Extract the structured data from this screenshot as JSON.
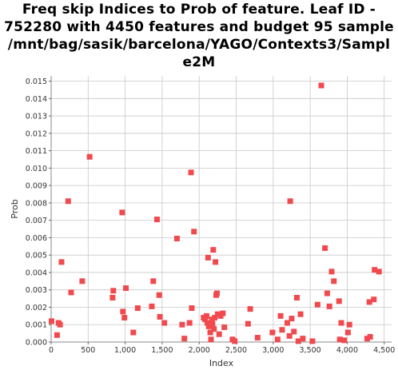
{
  "chart_data": {
    "type": "scatter",
    "title_lines": [
      "Freq skip Indices to Prob of feature. Leaf ID -",
      "752280 with 4450 features and budget 95 sample",
      "/mnt/bag/sasik/barcelona/YAGO/Contexts3/Sampl",
      "e2M"
    ],
    "xlabel": "Index",
    "ylabel": "Prob",
    "xlim": [
      0,
      4600
    ],
    "ylim": [
      0,
      0.0153
    ],
    "x_ticks": [
      0,
      500,
      1000,
      1500,
      2000,
      2500,
      3000,
      3500,
      4000,
      4500
    ],
    "x_tick_labels": [
      "0",
      "500",
      "1,000",
      "1,500",
      "2,000",
      "2,500",
      "3,000",
      "3,500",
      "4,000",
      "4,500"
    ],
    "y_ticks": [
      0.0,
      0.001,
      0.002,
      0.003,
      0.004,
      0.005,
      0.006,
      0.007,
      0.008,
      0.009,
      0.01,
      0.011,
      0.012,
      0.013,
      0.014,
      0.015
    ],
    "y_tick_labels": [
      "0.000",
      "0.001",
      "0.002",
      "0.003",
      "0.004",
      "0.005",
      "0.006",
      "0.007",
      "0.008",
      "0.009",
      "0.010",
      "0.011",
      "0.012",
      "0.013",
      "0.014",
      "0.015"
    ],
    "grid": true,
    "marker_color": "#f04a4f",
    "grid_color": "#c8c8c8",
    "points": [
      [
        5,
        0.0012
      ],
      [
        80,
        0.0004
      ],
      [
        100,
        0.0011
      ],
      [
        120,
        0.001
      ],
      [
        140,
        0.0046
      ],
      [
        230,
        0.0081
      ],
      [
        270,
        0.00285
      ],
      [
        420,
        0.0035
      ],
      [
        520,
        0.01065
      ],
      [
        830,
        0.00255
      ],
      [
        840,
        0.00295
      ],
      [
        960,
        0.00745
      ],
      [
        970,
        0.00175
      ],
      [
        990,
        0.0014
      ],
      [
        1010,
        0.0031
      ],
      [
        1110,
        0.00055
      ],
      [
        1170,
        0.00195
      ],
      [
        1360,
        0.00205
      ],
      [
        1380,
        0.0035
      ],
      [
        1430,
        0.00705
      ],
      [
        1460,
        0.0027
      ],
      [
        1470,
        0.00145
      ],
      [
        1530,
        0.0011
      ],
      [
        1700,
        0.00595
      ],
      [
        1770,
        0.001
      ],
      [
        1800,
        0.0002
      ],
      [
        1870,
        0.0011
      ],
      [
        1890,
        0.00975
      ],
      [
        1900,
        0.00195
      ],
      [
        1930,
        0.00635
      ],
      [
        2060,
        0.0014
      ],
      [
        2080,
        0.0013
      ],
      [
        2100,
        0.0015
      ],
      [
        2110,
        0.0011
      ],
      [
        2120,
        0.00485
      ],
      [
        2130,
        0.0009
      ],
      [
        2140,
        0.001
      ],
      [
        2150,
        0.00055
      ],
      [
        2160,
        0.00015
      ],
      [
        2170,
        0.0013
      ],
      [
        2180,
        0.00105
      ],
      [
        2190,
        0.0053
      ],
      [
        2200,
        0.00075
      ],
      [
        2210,
        0.0014
      ],
      [
        2220,
        0.0046
      ],
      [
        2230,
        0.0027
      ],
      [
        2240,
        0.0028
      ],
      [
        2250,
        0.0016
      ],
      [
        2270,
        0.00045
      ],
      [
        2290,
        0.0015
      ],
      [
        2320,
        0.00165
      ],
      [
        2340,
        0.00085
      ],
      [
        2450,
        0.00015
      ],
      [
        2480,
        5e-05
      ],
      [
        2660,
        0.00105
      ],
      [
        2690,
        0.0019
      ],
      [
        2790,
        0.00025
      ],
      [
        2990,
        0.00055
      ],
      [
        3060,
        0.00015
      ],
      [
        3100,
        0.0015
      ],
      [
        3120,
        0.0007
      ],
      [
        3190,
        0.0011
      ],
      [
        3220,
        0.00035
      ],
      [
        3230,
        0.0081
      ],
      [
        3250,
        0.00135
      ],
      [
        3280,
        0.0006
      ],
      [
        3320,
        0.00255
      ],
      [
        3340,
        5e-05
      ],
      [
        3370,
        0.0016
      ],
      [
        3400,
        0.0002
      ],
      [
        3530,
        5e-05
      ],
      [
        3600,
        0.00215
      ],
      [
        3650,
        0.01475
      ],
      [
        3700,
        0.0054
      ],
      [
        3730,
        0.0028
      ],
      [
        3760,
        0.00205
      ],
      [
        3790,
        0.00405
      ],
      [
        3820,
        0.0035
      ],
      [
        3890,
        0.00235
      ],
      [
        3900,
        0.00015
      ],
      [
        3920,
        0.0011
      ],
      [
        3960,
        0.0001
      ],
      [
        4010,
        0.00055
      ],
      [
        4030,
        0.001
      ],
      [
        4270,
        0.0002
      ],
      [
        4300,
        0.0023
      ],
      [
        4310,
        0.0003
      ],
      [
        4360,
        0.00245
      ],
      [
        4370,
        0.00415
      ],
      [
        4430,
        0.00405
      ]
    ]
  }
}
